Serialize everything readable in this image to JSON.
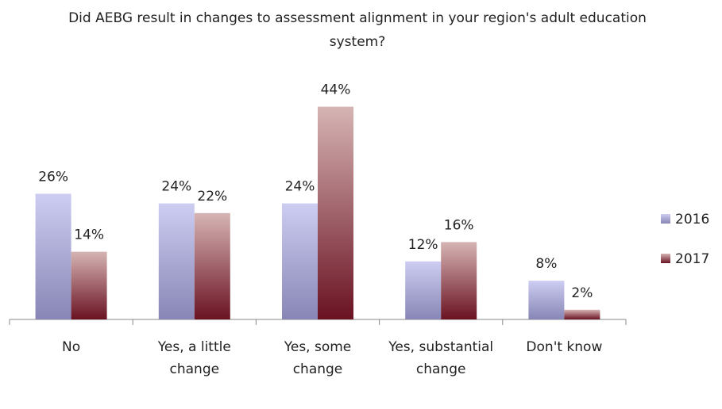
{
  "chart_data": {
    "type": "bar",
    "title": "Did AEBG result in changes to assessment alignment in your region's adult education system?",
    "categories": [
      "No",
      "Yes, a little change",
      "Yes, some change",
      "Yes, substantial change",
      "Don't know"
    ],
    "series": [
      {
        "name": "2016",
        "color": "#cdcdf2",
        "color_bottom": "#8886b5",
        "values": [
          26,
          24,
          24,
          12,
          8
        ],
        "value_labels": [
          "26%",
          "24%",
          "24%",
          "12%",
          "8%"
        ]
      },
      {
        "name": "2017",
        "color": "#d6b4b4",
        "color_bottom": "#6a1222",
        "values": [
          14,
          22,
          44,
          16,
          2
        ],
        "value_labels": [
          "14%",
          "22%",
          "44%",
          "16%",
          "2%"
        ]
      }
    ],
    "ylim": [
      0,
      50
    ],
    "legend": "right"
  }
}
